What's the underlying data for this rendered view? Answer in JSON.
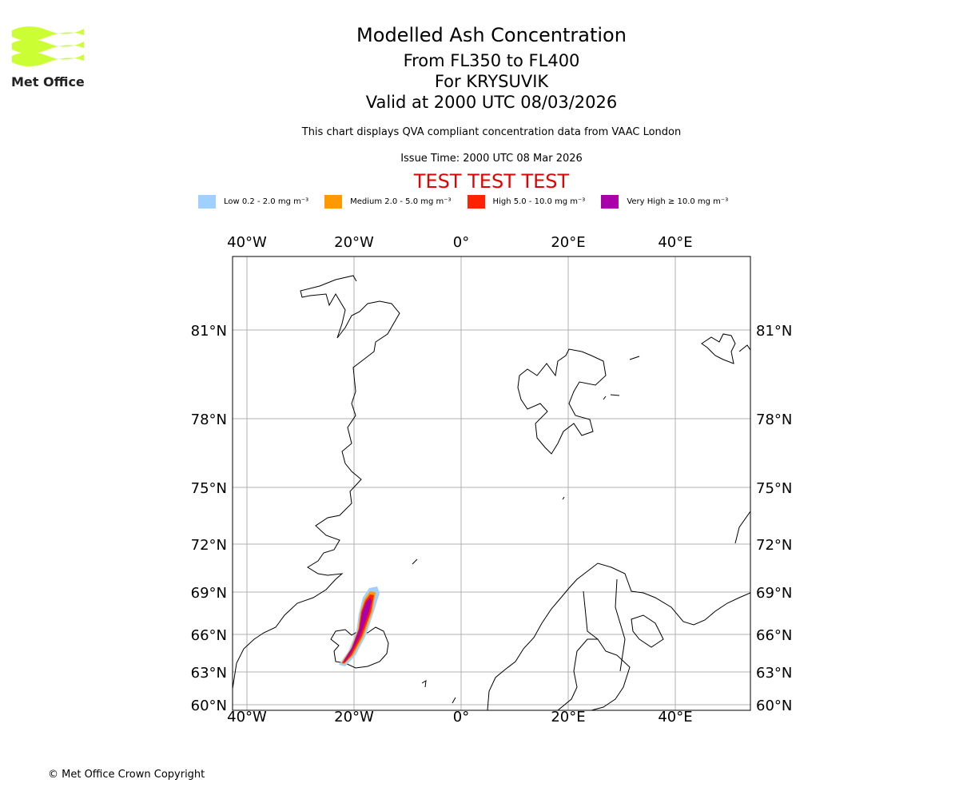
{
  "header": {
    "title": "Modelled Ash Concentration",
    "levels": "From FL350 to FL400",
    "volcano": "For KRYSUVIK",
    "valid": "Valid at 2000 UTC 08/03/2026",
    "note": "This chart displays QVA compliant concentration data from VAAC London",
    "issue": "Issue Time: 2000 UTC 08 Mar 2026",
    "test": "TEST TEST TEST"
  },
  "logo": {
    "text": "Met Office",
    "color": "#ccff33"
  },
  "legend": [
    {
      "label": "Low 0.2 - 2.0 mg m⁻³",
      "color": "#a0d0ff"
    },
    {
      "label": "Medium 2.0 - 5.0 mg m⁻³",
      "color": "#ff9900"
    },
    {
      "label": "High 5.0 - 10.0 mg m⁻³",
      "color": "#ff2200"
    },
    {
      "label": "Very High ≥ 10.0 mg m⁻³",
      "color": "#aa00aa"
    }
  ],
  "chart_data": {
    "type": "map",
    "lon_ticks": [
      "40°W",
      "20°W",
      "0°",
      "20°E",
      "40°E"
    ],
    "lon_values": [
      -40,
      -20,
      0,
      20,
      40
    ],
    "lat_ticks": [
      "81°N",
      "78°N",
      "75°N",
      "72°N",
      "69°N",
      "66°N",
      "63°N",
      "60°N"
    ],
    "lat_values": [
      81,
      78,
      75,
      72,
      69,
      66,
      63,
      60
    ],
    "grid": true,
    "plume": {
      "source": "Krysuvik (Iceland)",
      "from": [
        -22,
        63.9
      ],
      "to": [
        -16.5,
        69.2
      ],
      "max_category": "Very High"
    }
  },
  "footer": {
    "copyright": "© Met Office Crown Copyright"
  }
}
